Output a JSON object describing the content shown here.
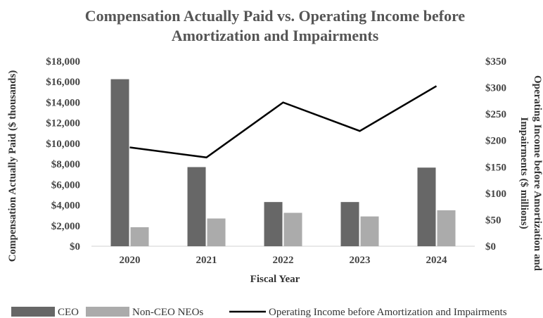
{
  "chart_data": {
    "type": "bar",
    "title": "Compensation Actually Paid vs. Operating Income before Amortization and Impairments",
    "title_lines": [
      "Compensation Actually Paid vs. Operating Income before",
      "Amortization and Impairments"
    ],
    "xlabel": "Fiscal Year",
    "ylabel": "Compensation Actually Paid ($ thousands)",
    "y2label": "Operating Income before Amortization and Impairments ($ millions)",
    "y2label_lines": [
      "Operating Income before Amortization and",
      "Impairments ($ millions)"
    ],
    "categories": [
      "2020",
      "2021",
      "2022",
      "2023",
      "2024"
    ],
    "ylim": [
      0,
      18000
    ],
    "y_ticks": [
      "$0",
      "$2,000",
      "$4,000",
      "$6,000",
      "$8,000",
      "$10,000",
      "$12,000",
      "$14,000",
      "$16,000",
      "$18,000"
    ],
    "y2lim": [
      0,
      350
    ],
    "y2_ticks": [
      "$0",
      "$50",
      "$100",
      "$150",
      "$200",
      "$250",
      "$300",
      "$350"
    ],
    "series": [
      {
        "name": "CEO",
        "type": "bar",
        "axis": "left",
        "color": "#676767",
        "values": [
          16250,
          7700,
          4300,
          4300,
          7650
        ]
      },
      {
        "name": "Non-CEO NEOs",
        "type": "bar",
        "axis": "left",
        "color": "#ababab",
        "values": [
          1850,
          2700,
          3250,
          2900,
          3500
        ]
      },
      {
        "name": "Operating Income before Amortization and Impairments",
        "type": "line",
        "axis": "right",
        "color": "#000000",
        "values": [
          187,
          168,
          272,
          218,
          303
        ]
      }
    ],
    "grid": false,
    "legend_position": "bottom"
  }
}
